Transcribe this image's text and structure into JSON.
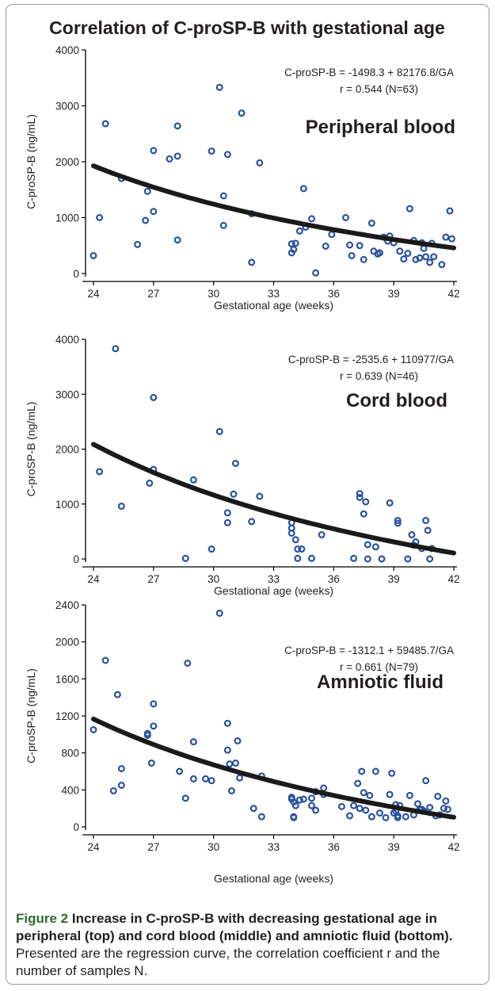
{
  "title": "Correlation of C-proSP-B with gestational age",
  "chart_data": [
    {
      "type": "scatter",
      "name": "Peripheral blood",
      "xlabel": "Gestational age (weeks)",
      "ylabel": "C-proSP-B (ng/mL)",
      "xlim": [
        24,
        42
      ],
      "ylim": [
        0,
        4000
      ],
      "x_ticks": [
        24,
        27,
        30,
        33,
        36,
        39,
        42
      ],
      "y_ticks": [
        0,
        1000,
        2000,
        3000,
        4000
      ],
      "equation": "C-proSP-B = -1498.3 + 82176.8/GA",
      "stats": "r = 0.544 (N=63)",
      "fit": {
        "a": -1498.3,
        "b": 82176.8
      },
      "points": [
        [
          24.0,
          320
        ],
        [
          24.3,
          1000
        ],
        [
          24.6,
          2680
        ],
        [
          25.4,
          1700
        ],
        [
          26.2,
          520
        ],
        [
          26.6,
          950
        ],
        [
          26.7,
          1470
        ],
        [
          27.0,
          2200
        ],
        [
          27.0,
          1110
        ],
        [
          27.8,
          2050
        ],
        [
          28.2,
          2640
        ],
        [
          28.2,
          2100
        ],
        [
          28.2,
          600
        ],
        [
          29.9,
          2190
        ],
        [
          30.3,
          3330
        ],
        [
          30.5,
          1390
        ],
        [
          30.5,
          860
        ],
        [
          30.7,
          2130
        ],
        [
          31.9,
          1070
        ],
        [
          31.9,
          200
        ],
        [
          31.4,
          2870
        ],
        [
          32.3,
          1980
        ],
        [
          33.9,
          530
        ],
        [
          33.9,
          370
        ],
        [
          34.0,
          430
        ],
        [
          34.1,
          540
        ],
        [
          34.3,
          760
        ],
        [
          34.5,
          1520
        ],
        [
          34.6,
          830
        ],
        [
          34.9,
          980
        ],
        [
          35.1,
          10
        ],
        [
          35.6,
          490
        ],
        [
          35.9,
          700
        ],
        [
          36.6,
          1000
        ],
        [
          36.8,
          510
        ],
        [
          36.9,
          320
        ],
        [
          37.3,
          500
        ],
        [
          37.5,
          250
        ],
        [
          37.9,
          900
        ],
        [
          38.0,
          400
        ],
        [
          38.2,
          350
        ],
        [
          38.5,
          650
        ],
        [
          38.7,
          580
        ],
        [
          38.8,
          670
        ],
        [
          39.0,
          550
        ],
        [
          39.3,
          400
        ],
        [
          39.5,
          260
        ],
        [
          39.8,
          1160
        ],
        [
          40.0,
          590
        ],
        [
          40.1,
          250
        ],
        [
          40.3,
          280
        ],
        [
          40.4,
          550
        ],
        [
          40.5,
          450
        ],
        [
          40.6,
          300
        ],
        [
          40.8,
          200
        ],
        [
          40.9,
          540
        ],
        [
          41.0,
          300
        ],
        [
          41.4,
          160
        ],
        [
          41.6,
          650
        ],
        [
          41.8,
          1120
        ],
        [
          41.9,
          620
        ],
        [
          39.7,
          360
        ],
        [
          38.3,
          370
        ]
      ]
    },
    {
      "type": "scatter",
      "name": "Cord blood",
      "xlabel": "Gestational age (weeks)",
      "ylabel": "C-proSP-B (ng/mL)",
      "xlim": [
        24,
        42
      ],
      "ylim": [
        0,
        4000
      ],
      "x_ticks": [
        24,
        27,
        30,
        33,
        36,
        39,
        42
      ],
      "y_ticks": [
        0,
        1000,
        2000,
        3000,
        4000
      ],
      "equation": "C-proSP-B = -2535.6 + 110977/GA",
      "stats": "r = 0.639 (N=46)",
      "fit": {
        "a": -2535.6,
        "b": 110977
      },
      "points": [
        [
          24.3,
          1590
        ],
        [
          25.1,
          3830
        ],
        [
          25.4,
          960
        ],
        [
          26.8,
          1380
        ],
        [
          27.0,
          2940
        ],
        [
          27.0,
          1630
        ],
        [
          28.6,
          10
        ],
        [
          29.0,
          1440
        ],
        [
          29.9,
          180
        ],
        [
          30.3,
          2320
        ],
        [
          30.7,
          840
        ],
        [
          30.7,
          660
        ],
        [
          31.0,
          1180
        ],
        [
          31.1,
          1740
        ],
        [
          31.9,
          680
        ],
        [
          32.3,
          1140
        ],
        [
          33.9,
          660
        ],
        [
          33.9,
          560
        ],
        [
          33.9,
          470
        ],
        [
          34.1,
          350
        ],
        [
          34.2,
          180
        ],
        [
          34.2,
          10
        ],
        [
          34.4,
          180
        ],
        [
          34.9,
          10
        ],
        [
          35.4,
          440
        ],
        [
          37.0,
          10
        ],
        [
          37.3,
          1190
        ],
        [
          37.3,
          1120
        ],
        [
          37.5,
          820
        ],
        [
          37.6,
          1040
        ],
        [
          37.7,
          260
        ],
        [
          37.7,
          0
        ],
        [
          38.1,
          220
        ],
        [
          38.4,
          0
        ],
        [
          38.8,
          1020
        ],
        [
          39.2,
          700
        ],
        [
          39.2,
          650
        ],
        [
          39.7,
          0
        ],
        [
          39.9,
          440
        ],
        [
          40.0,
          250
        ],
        [
          40.1,
          310
        ],
        [
          40.4,
          190
        ],
        [
          40.6,
          700
        ],
        [
          40.7,
          520
        ],
        [
          40.8,
          0
        ],
        [
          40.9,
          190
        ]
      ]
    },
    {
      "type": "scatter",
      "name": "Amniotic fluid",
      "xlabel": "Gestational age (weeks)",
      "ylabel": "C-proSP-B (ng/mL)",
      "xlim": [
        24,
        42
      ],
      "ylim": [
        0,
        2400
      ],
      "x_ticks": [
        24,
        27,
        30,
        33,
        36,
        39,
        42
      ],
      "y_ticks": [
        0,
        400,
        800,
        1200,
        1600,
        2000,
        2400
      ],
      "equation": "C-proSP-B = -1312.1 + 59485.7/GA",
      "stats": "r = 0.661 (N=79)",
      "fit": {
        "a": -1312.1,
        "b": 59485.7
      },
      "points": [
        [
          24.0,
          1050
        ],
        [
          24.6,
          1800
        ],
        [
          25.0,
          390
        ],
        [
          25.2,
          1430
        ],
        [
          25.4,
          450
        ],
        [
          25.4,
          630
        ],
        [
          26.7,
          990
        ],
        [
          26.7,
          1010
        ],
        [
          26.9,
          690
        ],
        [
          27.0,
          1330
        ],
        [
          27.0,
          1090
        ],
        [
          28.3,
          600
        ],
        [
          28.6,
          310
        ],
        [
          28.7,
          1770
        ],
        [
          29.0,
          920
        ],
        [
          29.0,
          520
        ],
        [
          29.6,
          520
        ],
        [
          29.9,
          500
        ],
        [
          30.3,
          2310
        ],
        [
          30.7,
          1120
        ],
        [
          30.7,
          830
        ],
        [
          30.8,
          680
        ],
        [
          30.9,
          390
        ],
        [
          31.1,
          690
        ],
        [
          31.2,
          930
        ],
        [
          31.3,
          530
        ],
        [
          32.0,
          200
        ],
        [
          32.4,
          110
        ],
        [
          32.4,
          550
        ],
        [
          33.9,
          320
        ],
        [
          33.9,
          300
        ],
        [
          34.0,
          110
        ],
        [
          34.0,
          100
        ],
        [
          34.0,
          270
        ],
        [
          34.1,
          230
        ],
        [
          34.3,
          290
        ],
        [
          34.5,
          300
        ],
        [
          34.9,
          230
        ],
        [
          34.9,
          310
        ],
        [
          35.1,
          380
        ],
        [
          35.1,
          180
        ],
        [
          35.5,
          420
        ],
        [
          35.5,
          350
        ],
        [
          36.8,
          120
        ],
        [
          37.0,
          230
        ],
        [
          37.2,
          470
        ],
        [
          37.3,
          200
        ],
        [
          37.4,
          600
        ],
        [
          37.5,
          370
        ],
        [
          37.6,
          180
        ],
        [
          37.8,
          340
        ],
        [
          38.1,
          600
        ],
        [
          38.3,
          150
        ],
        [
          38.6,
          100
        ],
        [
          38.8,
          350
        ],
        [
          38.9,
          580
        ],
        [
          39.1,
          240
        ],
        [
          39.1,
          170
        ],
        [
          39.2,
          100
        ],
        [
          39.2,
          120
        ],
        [
          39.3,
          230
        ],
        [
          39.6,
          110
        ],
        [
          39.8,
          340
        ],
        [
          40.0,
          130
        ],
        [
          40.2,
          250
        ],
        [
          40.3,
          190
        ],
        [
          40.5,
          170
        ],
        [
          40.6,
          500
        ],
        [
          40.8,
          210
        ],
        [
          41.1,
          120
        ],
        [
          41.2,
          330
        ],
        [
          41.3,
          130
        ],
        [
          41.5,
          200
        ],
        [
          41.6,
          280
        ],
        [
          41.7,
          190
        ],
        [
          39.0,
          150
        ],
        [
          36.4,
          220
        ],
        [
          37.9,
          110
        ],
        [
          40.4,
          190
        ]
      ]
    }
  ],
  "caption": {
    "figure_label": "Figure 2",
    "bold_text": "Increase in C-proSP-B with decreasing gestational age in peripheral (top) and cord blood (middle) and amniotic fluid (bottom).",
    "plain_text": "Presented are the regression curve, the correlation coefficient r and the number of samples N."
  },
  "colors": {
    "marker": "#2a52a0",
    "curve": "#1a1a1a",
    "text": "#231f20",
    "frame": "#9a9a9a",
    "caption_label": "#2c6b32"
  }
}
